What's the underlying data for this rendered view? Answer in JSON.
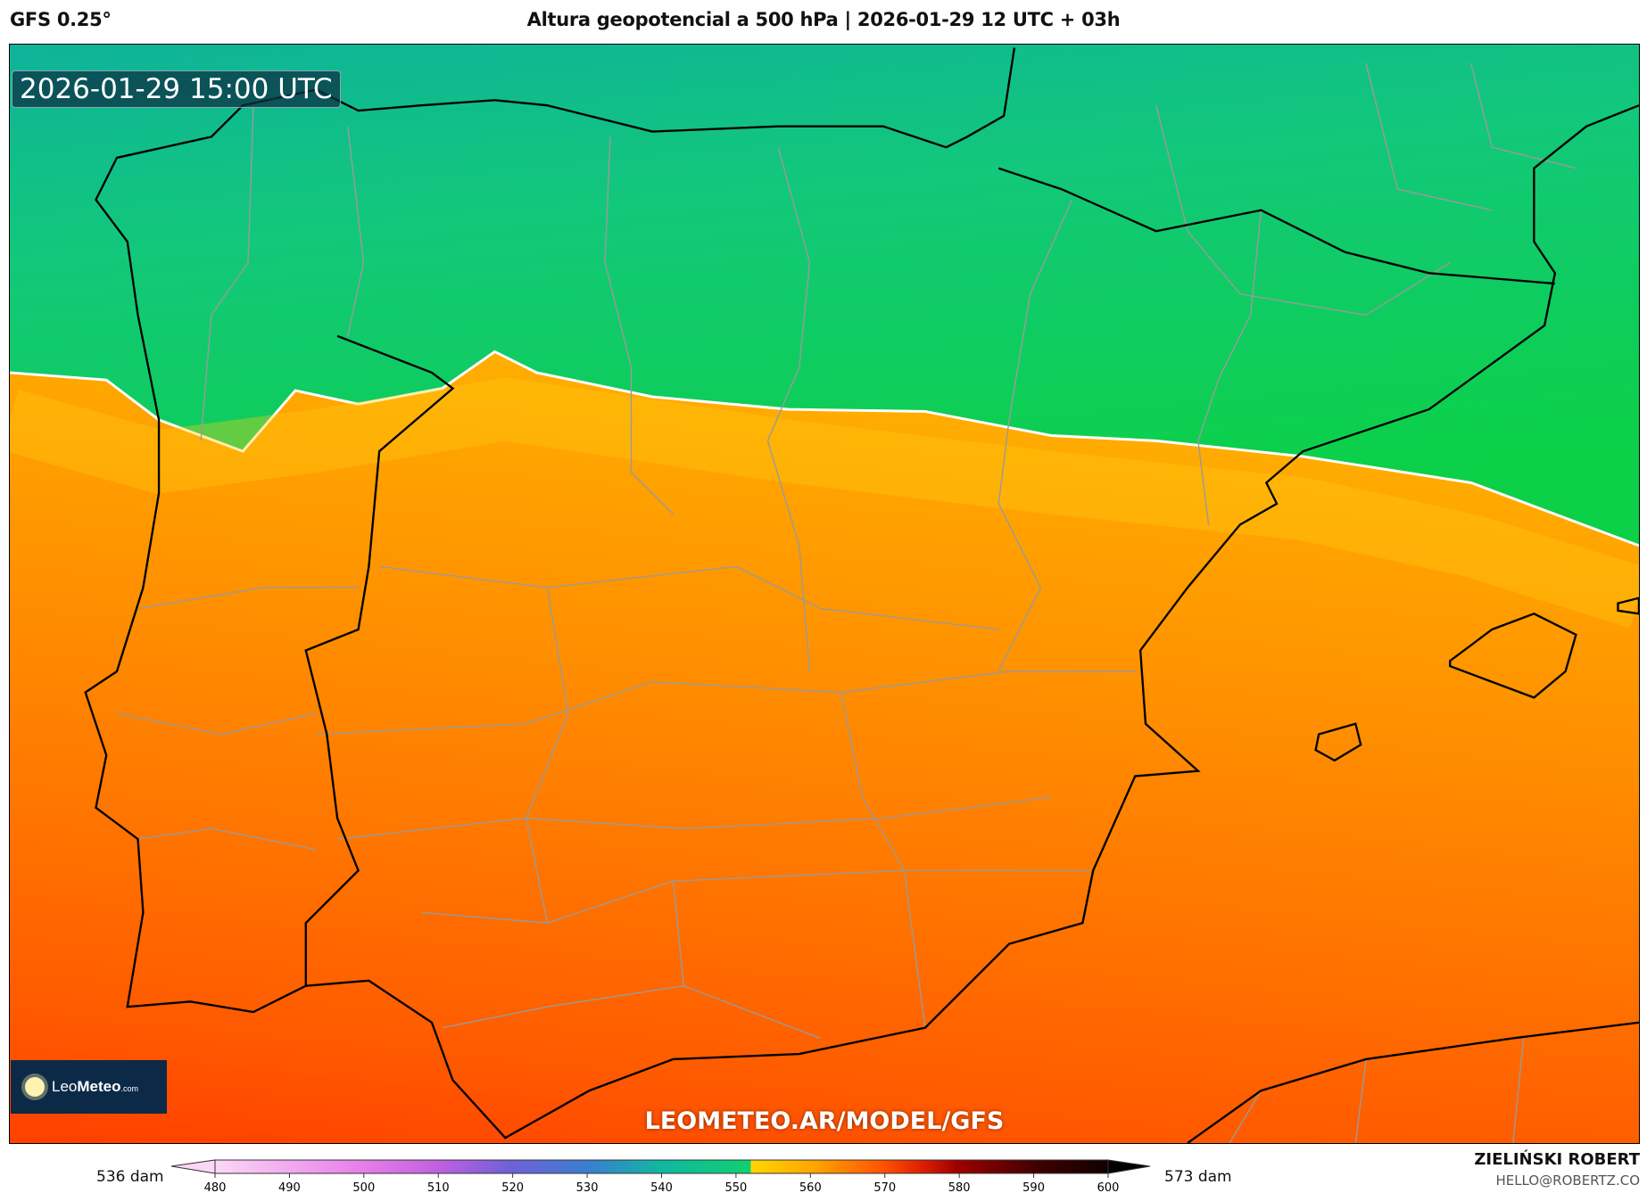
{
  "header": {
    "model": "GFS 0.25°",
    "title": "Altura geopotencial a 500 hPa | 2026-01-29 12 UTC + 03h"
  },
  "map": {
    "valid_time": "2026-01-29 15:00 UTC",
    "watermark": "LEOMETEO.AR/MODEL/GFS",
    "logo": {
      "leo": "Leo",
      "meteo": "Meteo",
      "com": ".com"
    },
    "colors": {
      "green": "#10d050",
      "yellow": "#ffd630",
      "orange": "#ff9800",
      "red": "#ff4400"
    }
  },
  "colorbar": {
    "min_label": "536 dam",
    "max_label": "573 dam",
    "ticks": [
      "480",
      "490",
      "500",
      "510",
      "520",
      "530",
      "540",
      "550",
      "560",
      "570",
      "580",
      "590",
      "600"
    ],
    "range": [
      480,
      600
    ]
  },
  "author": {
    "name": "ZIELIŃSKI ROBERT",
    "email": "HELLO@ROBERTZ.CO"
  }
}
